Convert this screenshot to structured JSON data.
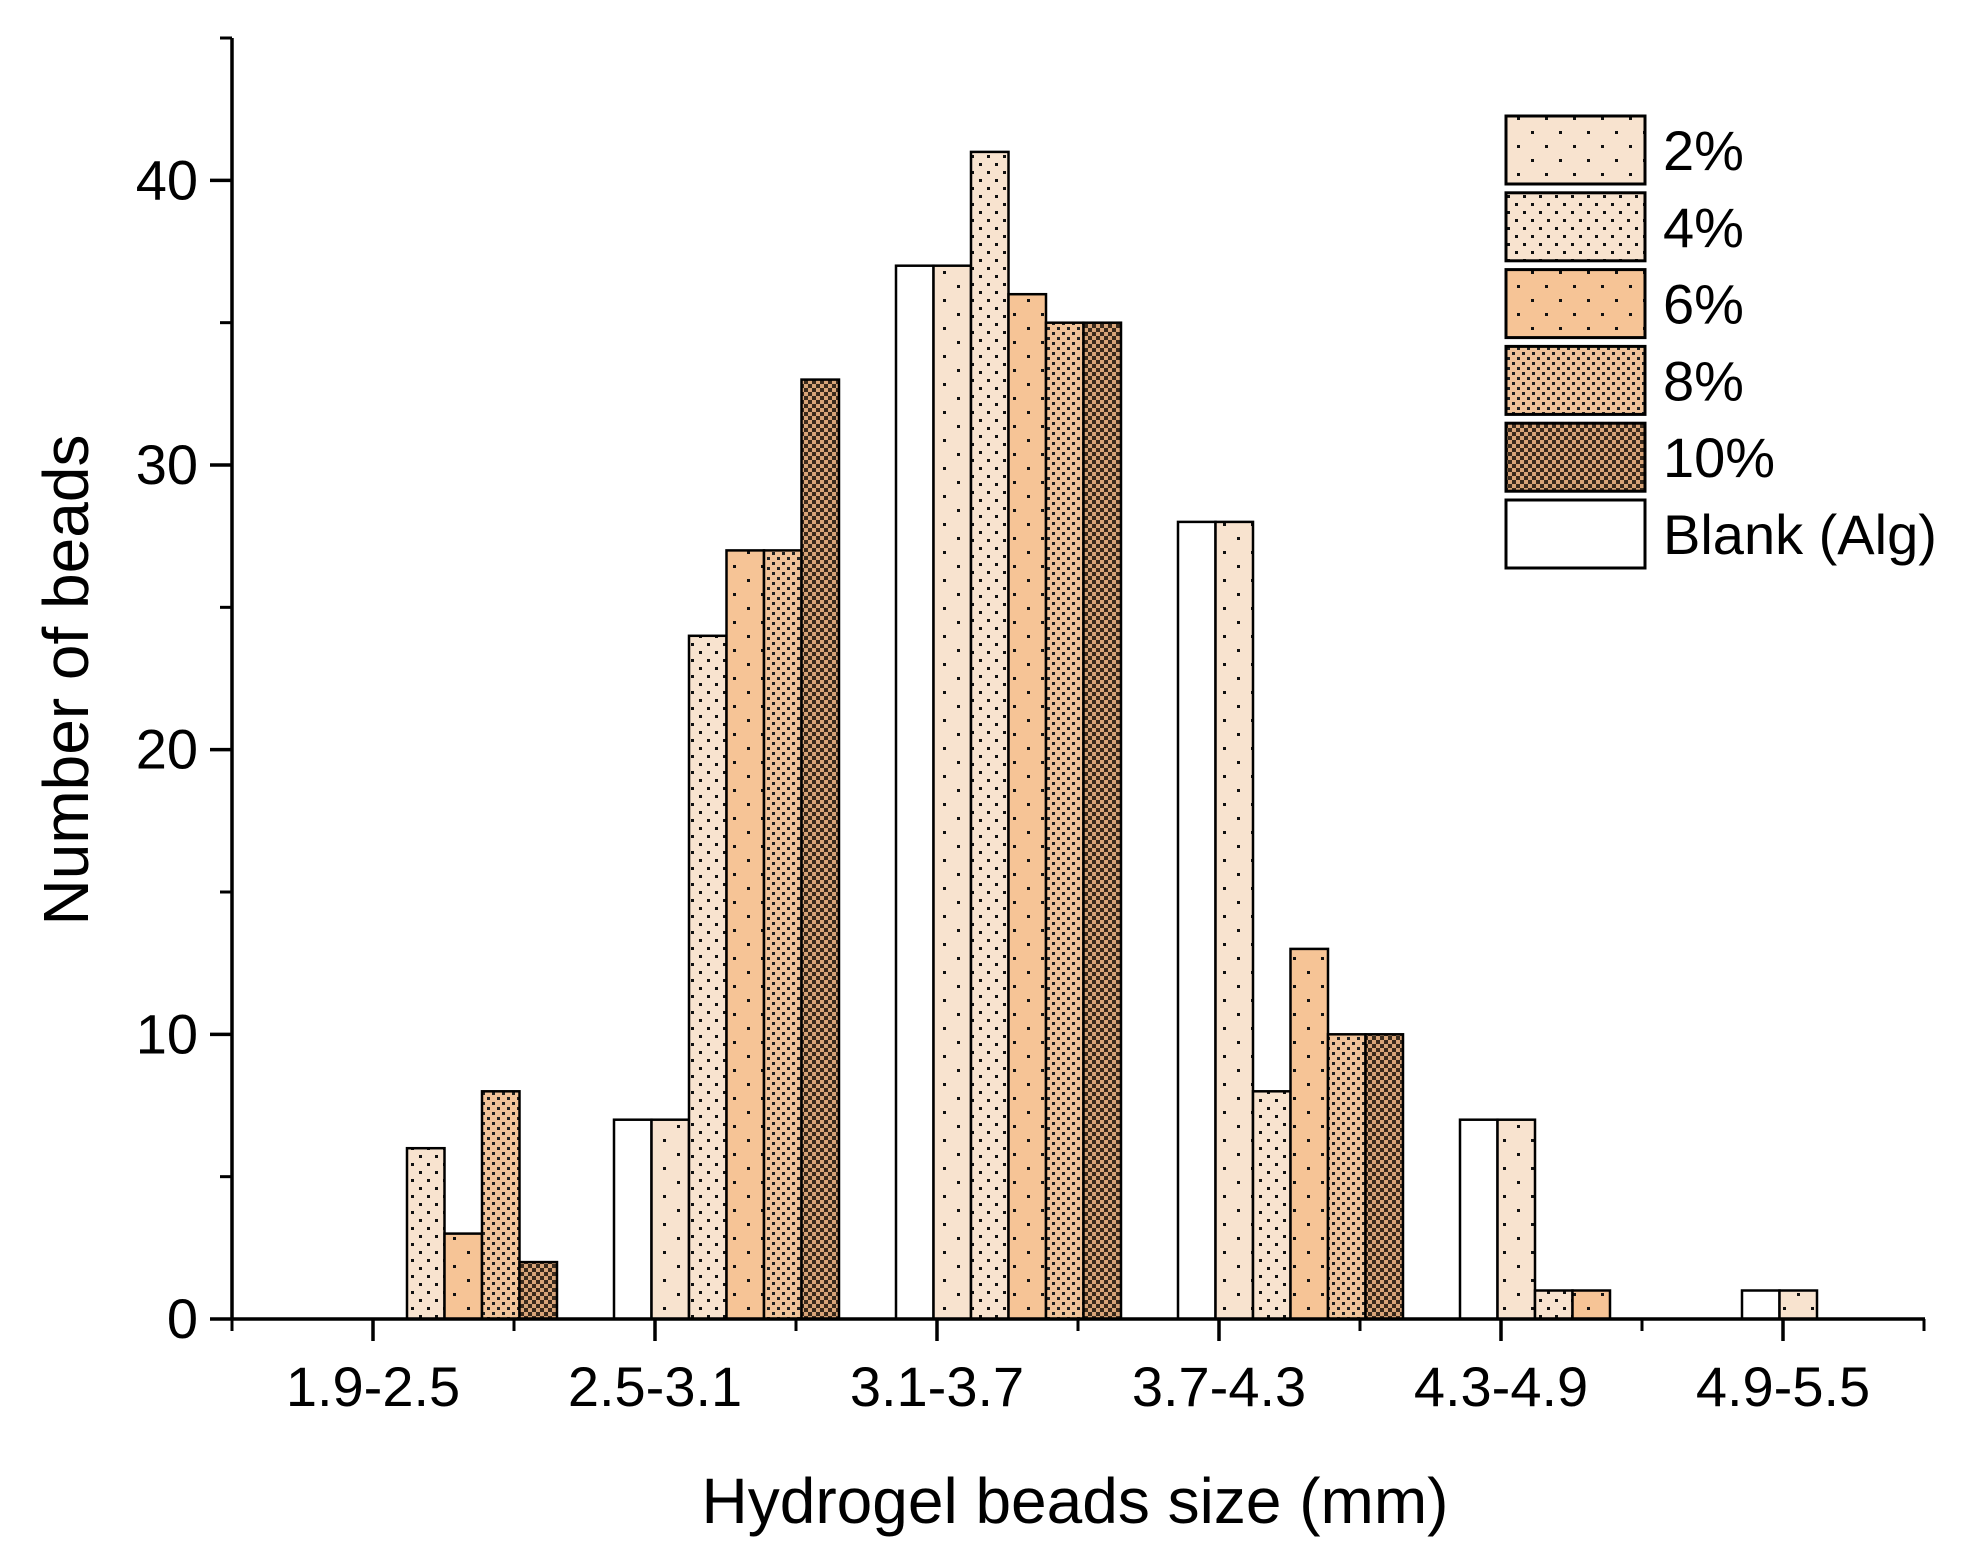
{
  "chart_data": {
    "type": "bar",
    "title": "",
    "xlabel": "Hydrogel beads size (mm)",
    "ylabel": "Number of beads",
    "ylim": [
      0,
      45
    ],
    "yticks": [
      0,
      10,
      20,
      30,
      40
    ],
    "y_minor_ticks": [
      5,
      15,
      25,
      35,
      45
    ],
    "grid": false,
    "legend_position": "top-right",
    "categories": [
      "1.9-2.5",
      "2.5-3.1",
      "3.1-3.7",
      "3.7-4.3",
      "4.3-4.9",
      "4.9-5.5"
    ],
    "series": [
      {
        "name": "Blank (Alg)",
        "pattern": "blank",
        "color": "#ffffff",
        "values": [
          0,
          7,
          37,
          28,
          7,
          1
        ]
      },
      {
        "name": "2%",
        "pattern": "dots-sparse",
        "color": "#f8e3cf",
        "values": [
          0,
          7,
          37,
          28,
          7,
          1
        ]
      },
      {
        "name": "4%",
        "pattern": "dots-medium",
        "color": "#f8e3cf",
        "values": [
          6,
          24,
          41,
          8,
          1,
          0
        ]
      },
      {
        "name": "6%",
        "pattern": "dots-sparse",
        "color": "#f6c496",
        "values": [
          3,
          27,
          36,
          13,
          1,
          0
        ]
      },
      {
        "name": "8%",
        "pattern": "dots-dense",
        "color": "#f2c49a",
        "values": [
          8,
          27,
          35,
          10,
          0,
          0
        ]
      },
      {
        "name": "10%",
        "pattern": "checker",
        "color": "#d8a478",
        "values": [
          2,
          33,
          35,
          10,
          0,
          0
        ]
      }
    ],
    "legend_order": [
      "2%",
      "4%",
      "6%",
      "8%",
      "10%",
      "Blank (Alg)"
    ]
  }
}
